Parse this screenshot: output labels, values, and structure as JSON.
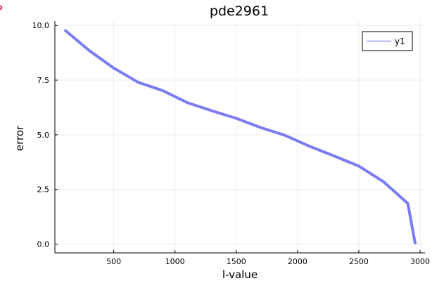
{
  "chart_data": {
    "type": "line",
    "title": "pde2961",
    "xlabel": "l-value",
    "ylabel": "error",
    "xlim": [
      20,
      3040
    ],
    "ylim": [
      -0.4,
      10.2
    ],
    "xticks": [
      500,
      1000,
      1500,
      2000,
      2500,
      3000
    ],
    "xtick_labels": [
      "500",
      "1000",
      "1500",
      "2000",
      "2500",
      "3000"
    ],
    "yticks": [
      0.0,
      2.5,
      5.0,
      7.5,
      10.0
    ],
    "ytick_labels": [
      "0.0",
      "2.5",
      "5.0",
      "7.5",
      "10.0"
    ],
    "grid": true,
    "legend": {
      "position": "top-right"
    },
    "series": [
      {
        "name": "y1",
        "color": "#7b7bf6",
        "x": [
          100,
          300,
          500,
          700,
          900,
          1100,
          1300,
          1500,
          1700,
          1900,
          2100,
          2300,
          2500,
          2700,
          2900,
          2961
        ],
        "y": [
          9.8,
          8.85,
          8.05,
          7.4,
          7.02,
          6.47,
          6.1,
          5.75,
          5.33,
          4.97,
          4.47,
          4.03,
          3.57,
          2.86,
          1.86,
          0.0
        ]
      }
    ]
  }
}
